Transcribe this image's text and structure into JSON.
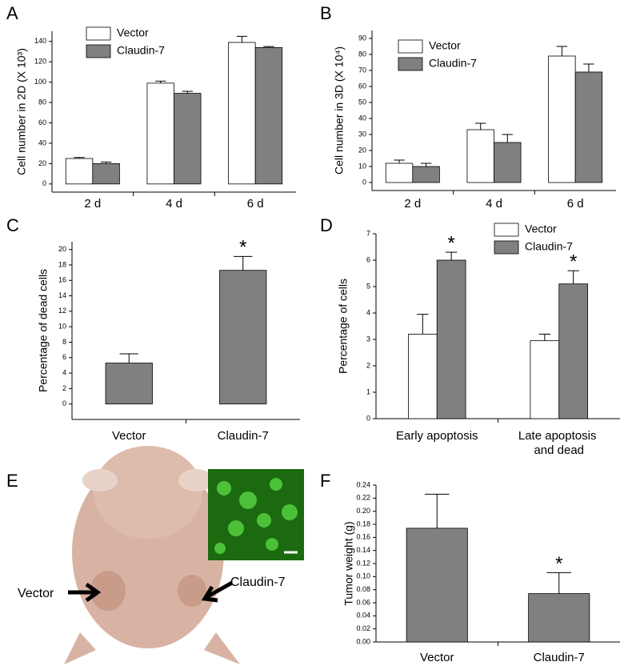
{
  "chart_data": [
    {
      "type": "bar",
      "panel": "A",
      "ylabel": "Cell number in 2D (X 10³)",
      "categories": [
        "2 d",
        "4 d",
        "6 d"
      ],
      "series": [
        {
          "name": "Vector",
          "color": "#ffffff",
          "values": [
            25,
            99,
            139
          ],
          "errors": [
            1,
            2,
            6
          ]
        },
        {
          "name": "Claudin-7",
          "color": "#808080",
          "values": [
            20,
            89,
            134
          ],
          "errors": [
            1.5,
            2,
            1
          ]
        }
      ],
      "ylim": [
        -8,
        150
      ],
      "yticks": [
        0,
        20,
        40,
        60,
        80,
        100,
        120,
        140
      ],
      "legend": "upper-left"
    },
    {
      "type": "bar",
      "panel": "B",
      "ylabel": "Cell number in 3D (X 10⁴)",
      "categories": [
        "2 d",
        "4 d",
        "6 d"
      ],
      "series": [
        {
          "name": "Vector",
          "color": "#ffffff",
          "values": [
            12,
            33,
            79
          ],
          "errors": [
            2,
            4,
            6
          ]
        },
        {
          "name": "Claudin-7",
          "color": "#808080",
          "values": [
            10,
            25,
            69
          ],
          "errors": [
            2,
            5,
            5
          ]
        }
      ],
      "ylim": [
        -5,
        95
      ],
      "yticks": [
        0,
        10,
        20,
        30,
        40,
        50,
        60,
        70,
        80,
        90
      ],
      "legend": "upper-left"
    },
    {
      "type": "bar",
      "panel": "C",
      "ylabel": "Percentage of dead cells",
      "categories": [
        "Vector",
        "Claudin-7"
      ],
      "series": [
        {
          "color": "#808080",
          "values": [
            5.3,
            17.3
          ],
          "errors": [
            1.2,
            1.8
          ],
          "annotations": [
            null,
            "*"
          ]
        }
      ],
      "ylim": [
        -2,
        21
      ],
      "yticks": [
        0,
        2,
        4,
        6,
        8,
        10,
        12,
        14,
        16,
        18,
        20
      ]
    },
    {
      "type": "bar",
      "panel": "D",
      "ylabel": "Percentage of cells",
      "categories": [
        "Early apoptosis",
        "Late apoptosis and dead"
      ],
      "series": [
        {
          "name": "Vector",
          "color": "#ffffff",
          "values": [
            3.2,
            2.95
          ],
          "errors": [
            0.75,
            0.25
          ]
        },
        {
          "name": "Claudin-7",
          "color": "#808080",
          "values": [
            6.0,
            5.1
          ],
          "errors": [
            0.3,
            0.5
          ],
          "annotations": [
            "*",
            "*"
          ]
        }
      ],
      "ylim": [
        0,
        7
      ],
      "yticks": [
        0,
        1,
        2,
        3,
        4,
        5,
        6,
        7
      ],
      "legend": "upper-right"
    },
    {
      "type": "bar",
      "panel": "F",
      "ylabel": "Tumor weight (g)",
      "categories": [
        "Vector",
        "Claudin-7"
      ],
      "series": [
        {
          "color": "#808080",
          "values": [
            0.174,
            0.074
          ],
          "errors": [
            0.052,
            0.032
          ],
          "annotations": [
            null,
            "*"
          ]
        }
      ],
      "ylim": [
        0,
        0.24
      ],
      "yticks": [
        {
          "value": 0,
          "label": "0.00"
        },
        {
          "value": 0.02,
          "label": "0.02"
        },
        {
          "value": 0.04,
          "label": "0.04"
        },
        {
          "value": 0.06,
          "label": "0.06"
        },
        {
          "value": 0.08,
          "label": "0.08"
        },
        {
          "value": 0.1,
          "label": "0.10"
        },
        {
          "value": 0.12,
          "label": "0.12"
        },
        {
          "value": 0.14,
          "label": "0.14"
        },
        {
          "value": 0.16,
          "label": "0.16"
        },
        {
          "value": 0.18,
          "label": "0.18"
        },
        {
          "value": 0.2,
          "label": "0.20"
        },
        {
          "value": 0.22,
          "label": "0.22"
        },
        {
          "value": 0.24,
          "label": "0.24"
        }
      ]
    }
  ],
  "photo_panel": {
    "panel": "E",
    "left_label": "Vector",
    "right_label": "Claudin-7"
  }
}
